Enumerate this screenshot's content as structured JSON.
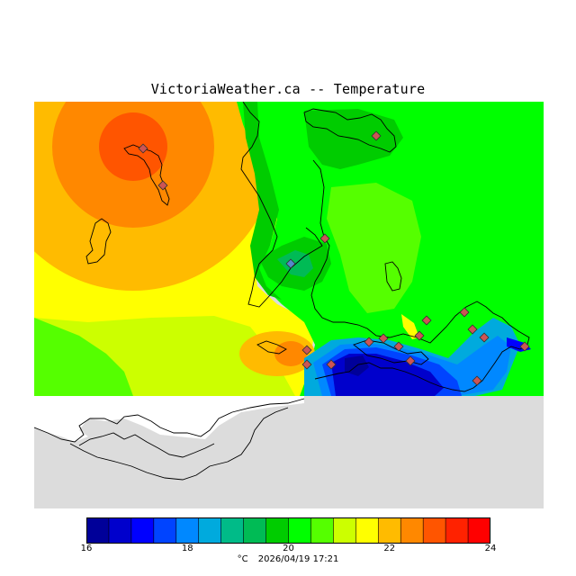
{
  "title": "VictoriaWeather.ca -- Temperature",
  "colorbar": {
    "colors": [
      "#000099",
      "#0000cc",
      "#0000ff",
      "#0044ff",
      "#0088ff",
      "#00aadd",
      "#00bb88",
      "#00bb55",
      "#00cc00",
      "#00ff00",
      "#55ff00",
      "#ccff00",
      "#ffff00",
      "#ffbb00",
      "#ff8800",
      "#ff5500",
      "#ff2200",
      "#ff0000"
    ],
    "ticks": [
      "16",
      "18",
      "20",
      "22",
      "24"
    ],
    "tick_values": [
      16,
      18,
      20,
      22,
      24
    ],
    "min": 16,
    "max": 24
  },
  "footer": {
    "unit": "°C",
    "timestamp": "2026/04/19 17:21"
  },
  "map": {
    "land_nodata_color": "#dcdcdc",
    "water_color": "#ffffff"
  }
}
